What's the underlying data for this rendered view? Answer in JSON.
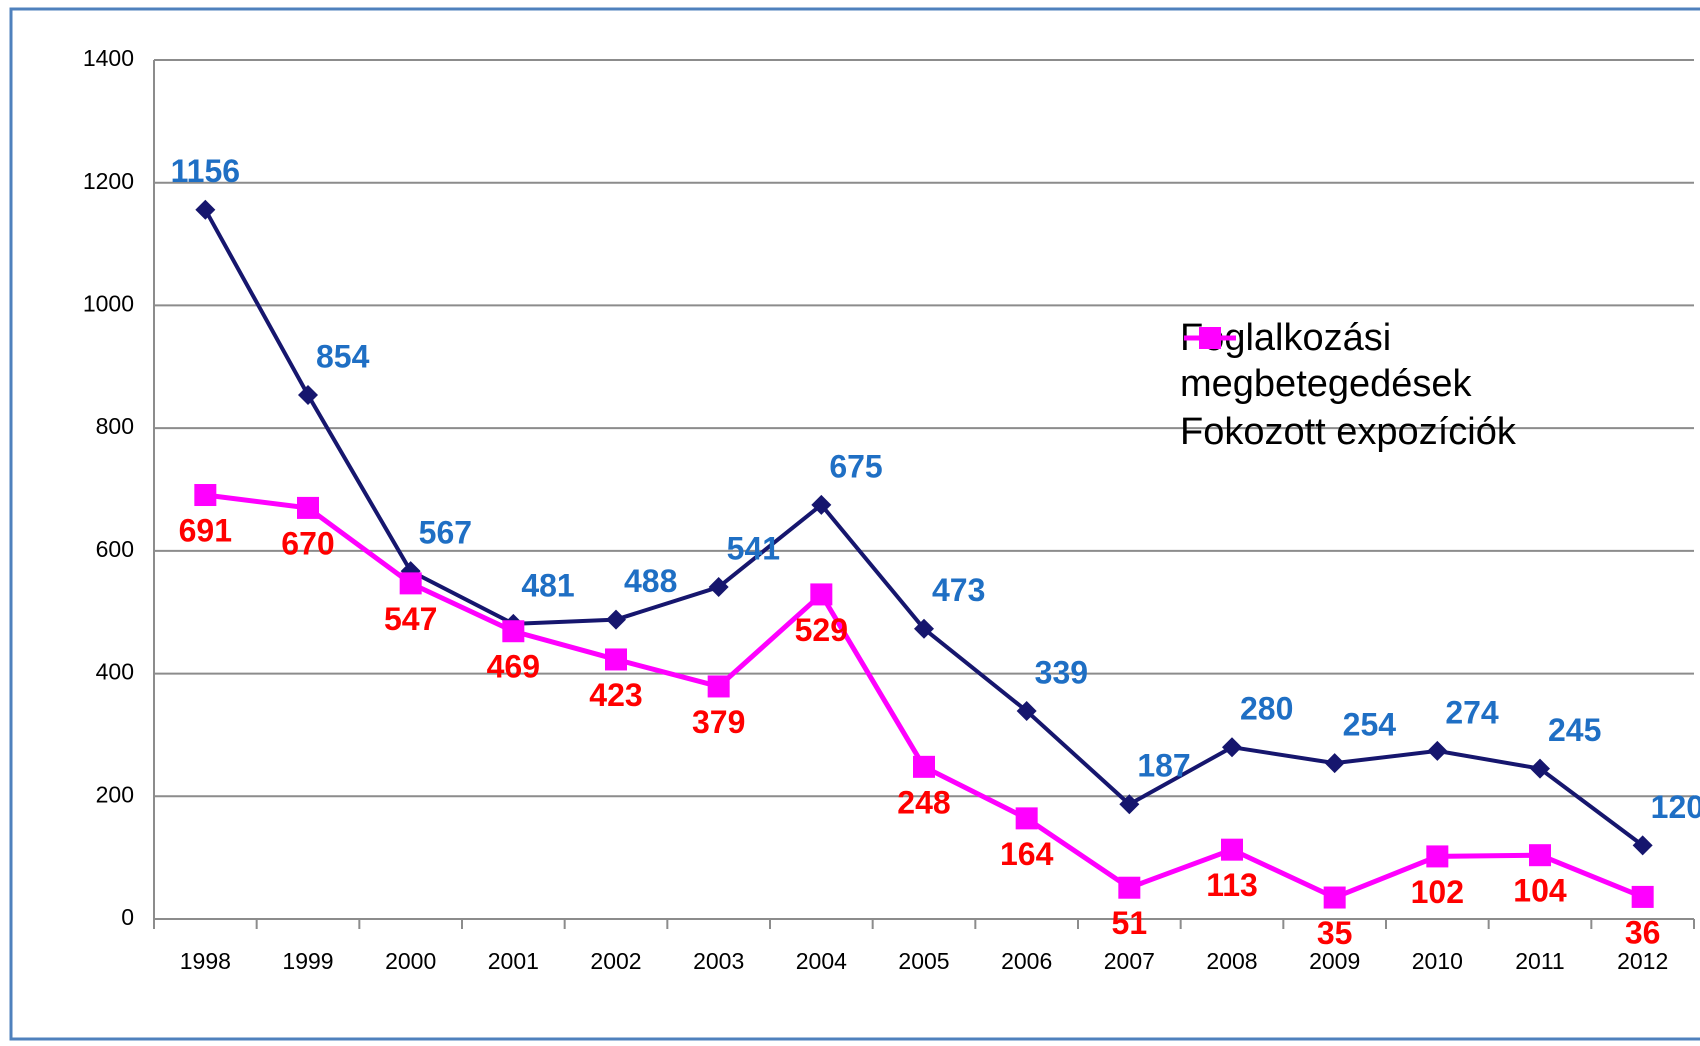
{
  "chart_data": {
    "type": "line",
    "categories": [
      "1998",
      "1999",
      "2000",
      "2001",
      "2002",
      "2003",
      "2004",
      "2005",
      "2006",
      "2007",
      "2008",
      "2009",
      "2010",
      "2011",
      "2012"
    ],
    "series": [
      {
        "name": "Foglalkozási megbetegedések",
        "color": "#16166e",
        "marker": "diamond",
        "label_color": "#1f6fc4",
        "values": [
          1156,
          854,
          567,
          481,
          488,
          541,
          675,
          473,
          339,
          187,
          280,
          254,
          274,
          245,
          120
        ]
      },
      {
        "name": "Fokozott expozíciók",
        "color": "#ff00ff",
        "marker": "square",
        "label_color": "#ff0000",
        "values": [
          691,
          670,
          547,
          469,
          423,
          379,
          529,
          248,
          164,
          51,
          113,
          35,
          102,
          104,
          36
        ]
      }
    ],
    "ylim": [
      0,
      1400
    ],
    "yticks": [
      0,
      200,
      400,
      600,
      800,
      1000,
      1200,
      1400
    ],
    "grid": true,
    "legend": "right"
  }
}
